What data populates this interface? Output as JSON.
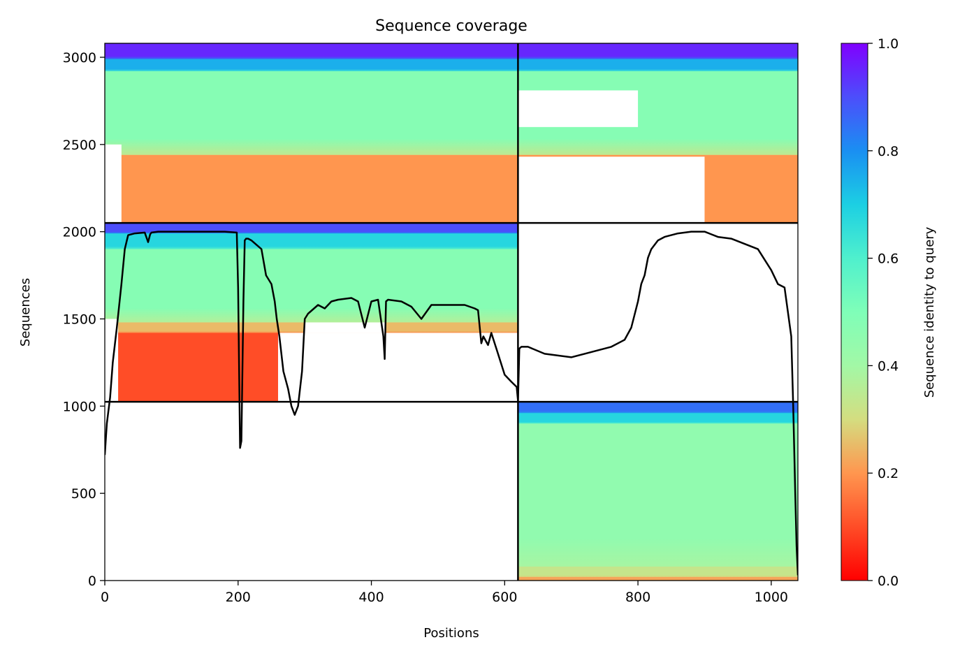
{
  "chart_data": {
    "type": "heatmap",
    "title": "Sequence coverage",
    "xlabel": "Positions",
    "ylabel": "Sequences",
    "xlim": [
      0,
      1040
    ],
    "ylim": [
      0,
      3080
    ],
    "x_ticks": [
      0,
      200,
      400,
      600,
      800,
      1000
    ],
    "y_ticks": [
      0,
      500,
      1000,
      1500,
      2000,
      2500,
      3000
    ],
    "grid": false,
    "colorbar": {
      "label": "Sequence identity to query",
      "colormap": "rainbow_r",
      "range": [
        0,
        1
      ],
      "ticks": [
        "0.0",
        "0.2",
        "0.4",
        "0.6",
        "0.8",
        "1.0"
      ]
    },
    "block_boundaries": {
      "x": 620,
      "y": [
        1025,
        2050
      ]
    },
    "blocks": [
      {
        "x_range": [
          0,
          620
        ],
        "y_range": [
          2050,
          3080
        ],
        "bands": [
          {
            "from": 3080,
            "to": 2990,
            "identity": 0.95
          },
          {
            "from": 2990,
            "to": 2920,
            "identity": 0.75
          },
          {
            "from": 2920,
            "to": 2440,
            "identity": 0.48
          },
          {
            "from": 2440,
            "to": 2050,
            "identity": 0.2
          }
        ]
      },
      {
        "x_range": [
          620,
          1040
        ],
        "y_range": [
          2050,
          3080
        ],
        "bands": [
          {
            "from": 3080,
            "to": 2990,
            "identity": 0.95
          },
          {
            "from": 2990,
            "to": 2920,
            "identity": 0.75
          },
          {
            "from": 2920,
            "to": 2440,
            "identity": 0.48
          },
          {
            "from": 2440,
            "to": 2050,
            "identity": 0.2
          }
        ]
      },
      {
        "x_range": [
          0,
          620
        ],
        "y_range": [
          1025,
          2050
        ],
        "bands": [
          {
            "from": 2050,
            "to": 1990,
            "identity": 0.9
          },
          {
            "from": 1990,
            "to": 1900,
            "identity": 0.68
          },
          {
            "from": 1900,
            "to": 1480,
            "identity": 0.48
          },
          {
            "from": 1480,
            "to": 1420,
            "identity": 0.25
          },
          {
            "from": 1420,
            "to": 1025,
            "identity": 0.1
          }
        ]
      },
      {
        "x_range": [
          620,
          1040
        ],
        "y_range": [
          0,
          1025
        ],
        "bands": [
          {
            "from": 1025,
            "to": 960,
            "identity": 0.85
          },
          {
            "from": 960,
            "to": 900,
            "identity": 0.68
          },
          {
            "from": 900,
            "to": 80,
            "identity": 0.45
          },
          {
            "from": 80,
            "to": 20,
            "identity": 0.33
          },
          {
            "from": 20,
            "to": 0,
            "identity": 0.22
          }
        ]
      }
    ],
    "white_regions": [
      {
        "x_range": [
          0,
          25
        ],
        "y_range": [
          2050,
          2500
        ]
      },
      {
        "x_range": [
          620,
          800
        ],
        "y_range": [
          2600,
          2810
        ]
      },
      {
        "x_range": [
          620,
          900
        ],
        "y_range": [
          2050,
          2430
        ]
      },
      {
        "x_range": [
          0,
          20
        ],
        "y_range": [
          1025,
          1500
        ]
      },
      {
        "x_range": [
          260,
          620
        ],
        "y_range": [
          1025,
          1420
        ]
      },
      {
        "x_range": [
          300,
          420
        ],
        "y_range": [
          1420,
          1480
        ]
      }
    ],
    "coverage_line": {
      "x": [
        0,
        3,
        8,
        12,
        18,
        25,
        30,
        35,
        45,
        60,
        65,
        68,
        70,
        80,
        100,
        150,
        180,
        198,
        200,
        203,
        205,
        208,
        210,
        212,
        215,
        220,
        235,
        242,
        250,
        255,
        258,
        262,
        268,
        275,
        280,
        285,
        290,
        296,
        300,
        305,
        320,
        330,
        340,
        350,
        370,
        380,
        390,
        400,
        410,
        418,
        420,
        422,
        425,
        445,
        460,
        475,
        490,
        540,
        555,
        560,
        565,
        568,
        575,
        580,
        590,
        600,
        610,
        618,
        620,
        622,
        625,
        635,
        660,
        680,
        700,
        720,
        740,
        760,
        780,
        790,
        800,
        805,
        810,
        815,
        820,
        830,
        840,
        860,
        880,
        900,
        920,
        940,
        960,
        980,
        1000,
        1010,
        1020,
        1030,
        1033,
        1036,
        1038,
        1040
      ],
      "y": [
        720,
        900,
        1050,
        1250,
        1450,
        1700,
        1900,
        1980,
        1990,
        1995,
        1940,
        1985,
        1995,
        2000,
        2000,
        2000,
        2000,
        1995,
        1680,
        760,
        800,
        1600,
        1950,
        1960,
        1960,
        1950,
        1900,
        1750,
        1700,
        1600,
        1500,
        1400,
        1200,
        1100,
        1000,
        950,
        1000,
        1200,
        1500,
        1530,
        1580,
        1560,
        1600,
        1610,
        1620,
        1600,
        1450,
        1600,
        1610,
        1400,
        1270,
        1600,
        1610,
        1600,
        1570,
        1500,
        1580,
        1580,
        1560,
        1550,
        1360,
        1400,
        1350,
        1420,
        1300,
        1180,
        1140,
        1110,
        1030,
        1330,
        1340,
        1340,
        1300,
        1290,
        1280,
        1300,
        1320,
        1340,
        1380,
        1450,
        1600,
        1700,
        1750,
        1850,
        1900,
        1950,
        1970,
        1990,
        2000,
        2000,
        1970,
        1960,
        1930,
        1900,
        1780,
        1700,
        1680,
        1400,
        1000,
        500,
        200,
        30
      ]
    }
  }
}
